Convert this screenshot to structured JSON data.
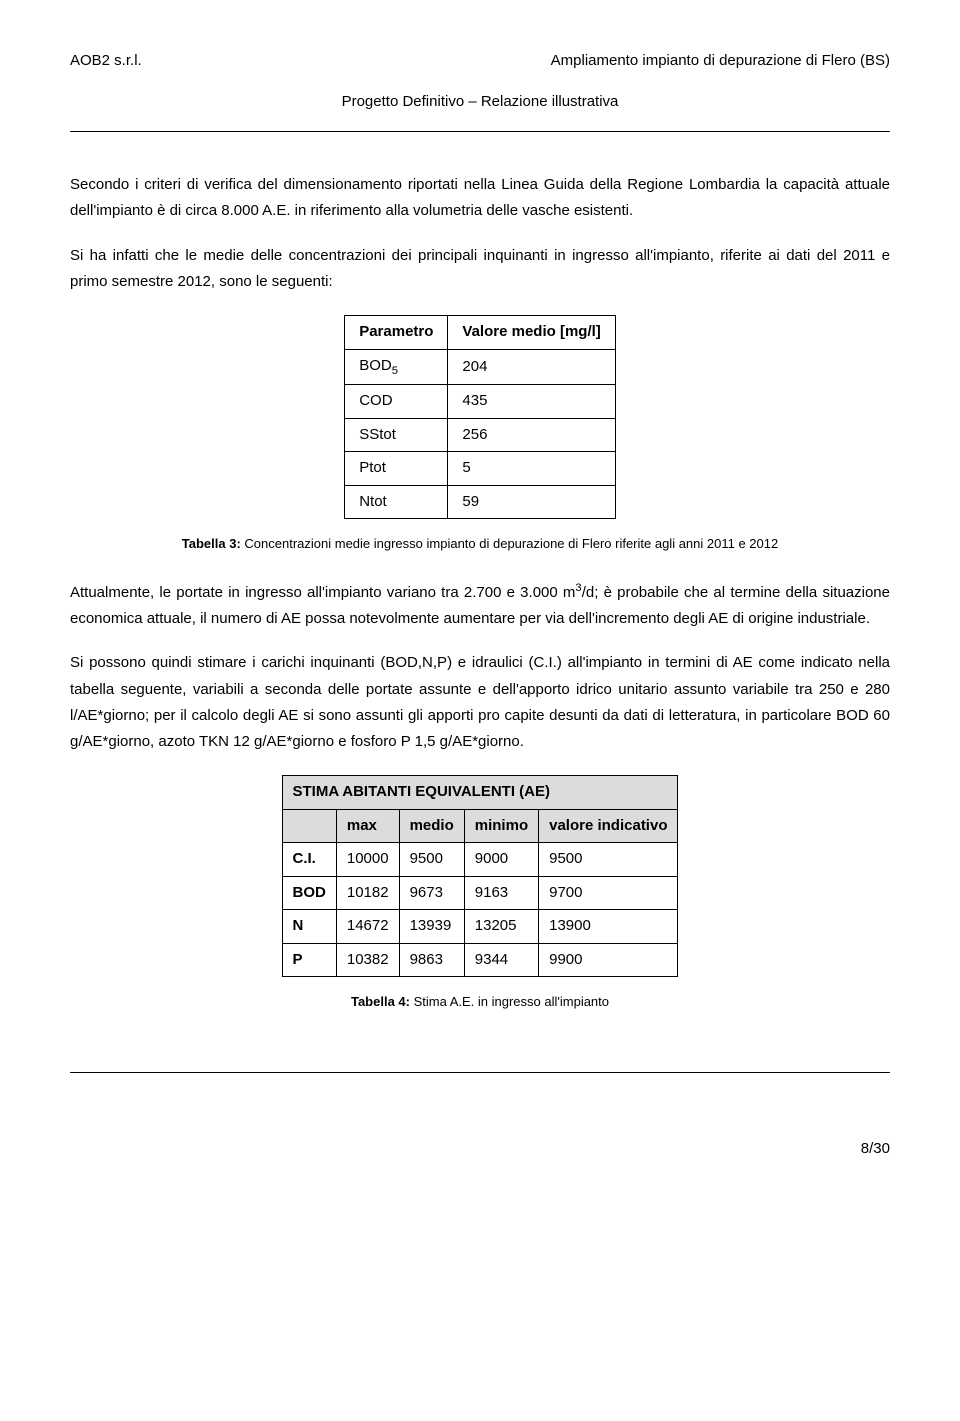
{
  "header": {
    "left": "AOB2 s.r.l.",
    "right": "Ampliamento impianto di depurazione di Flero (BS)",
    "subtitle": "Progetto Definitivo – Relazione illustrativa"
  },
  "para1": "Secondo i criteri di verifica del dimensionamento riportati nella Linea Guida della Regione Lombardia la capacità attuale dell'impianto è di circa 8.000 A.E. in riferimento alla volumetria delle vasche esistenti.",
  "para2": "Si ha infatti che le medie delle concentrazioni dei principali inquinanti in ingresso all'impianto, riferite ai dati del 2011 e primo semestre 2012, sono le seguenti:",
  "table1": {
    "h1": "Parametro",
    "h2": "Valore medio [mg/l]",
    "rows": [
      {
        "p": "BOD",
        "sub": "5",
        "v": "204"
      },
      {
        "p": "COD",
        "sub": "",
        "v": "435"
      },
      {
        "p": "SStot",
        "sub": "",
        "v": "256"
      },
      {
        "p": "Ptot",
        "sub": "",
        "v": "5"
      },
      {
        "p": "Ntot",
        "sub": "",
        "v": "59"
      }
    ]
  },
  "caption1_bold": "Tabella 3:",
  "caption1_text": " Concentrazioni medie ingresso impianto di depurazione di Flero riferite agli anni 2011 e 2012",
  "para3_a": "Attualmente, le portate in ingresso all'impianto variano tra 2.700 e 3.000 m",
  "para3_sup": "3",
  "para3_b": "/d; è probabile che al termine della situazione economica attuale, il numero di AE possa notevolmente aumentare  per via dell'incremento degli AE di origine industriale.",
  "para4": "Si possono quindi stimare i carichi inquinanti (BOD,N,P) e idraulici (C.I.) all'impianto in termini di AE come indicato nella tabella seguente, variabili a seconda delle portate assunte e dell'apporto idrico unitario assunto variabile tra 250 e 280 l/AE*giorno; per il calcolo degli AE si sono assunti gli apporti pro capite desunti da dati di letteratura, in particolare BOD 60 g/AE*giorno, azoto TKN 12 g/AE*giorno e fosforo P 1,5 g/AE*giorno.",
  "table2": {
    "title": "STIMA ABITANTI EQUIVALENTI (AE)",
    "cols": [
      "",
      "max",
      "medio",
      "minimo",
      "valore indicativo"
    ],
    "rows": [
      {
        "label": "C.I.",
        "c": [
          "10000",
          "9500",
          "9000",
          "9500"
        ]
      },
      {
        "label": "BOD",
        "c": [
          "10182",
          "9673",
          "9163",
          "9700"
        ]
      },
      {
        "label": "N",
        "c": [
          "14672",
          "13939",
          "13205",
          "13900"
        ]
      },
      {
        "label": "P",
        "c": [
          "10382",
          "9863",
          "9344",
          "9900"
        ]
      }
    ]
  },
  "caption2_bold": "Tabella 4:",
  "caption2_text": " Stima A.E. in ingresso all'impianto",
  "page_num": "8/30"
}
